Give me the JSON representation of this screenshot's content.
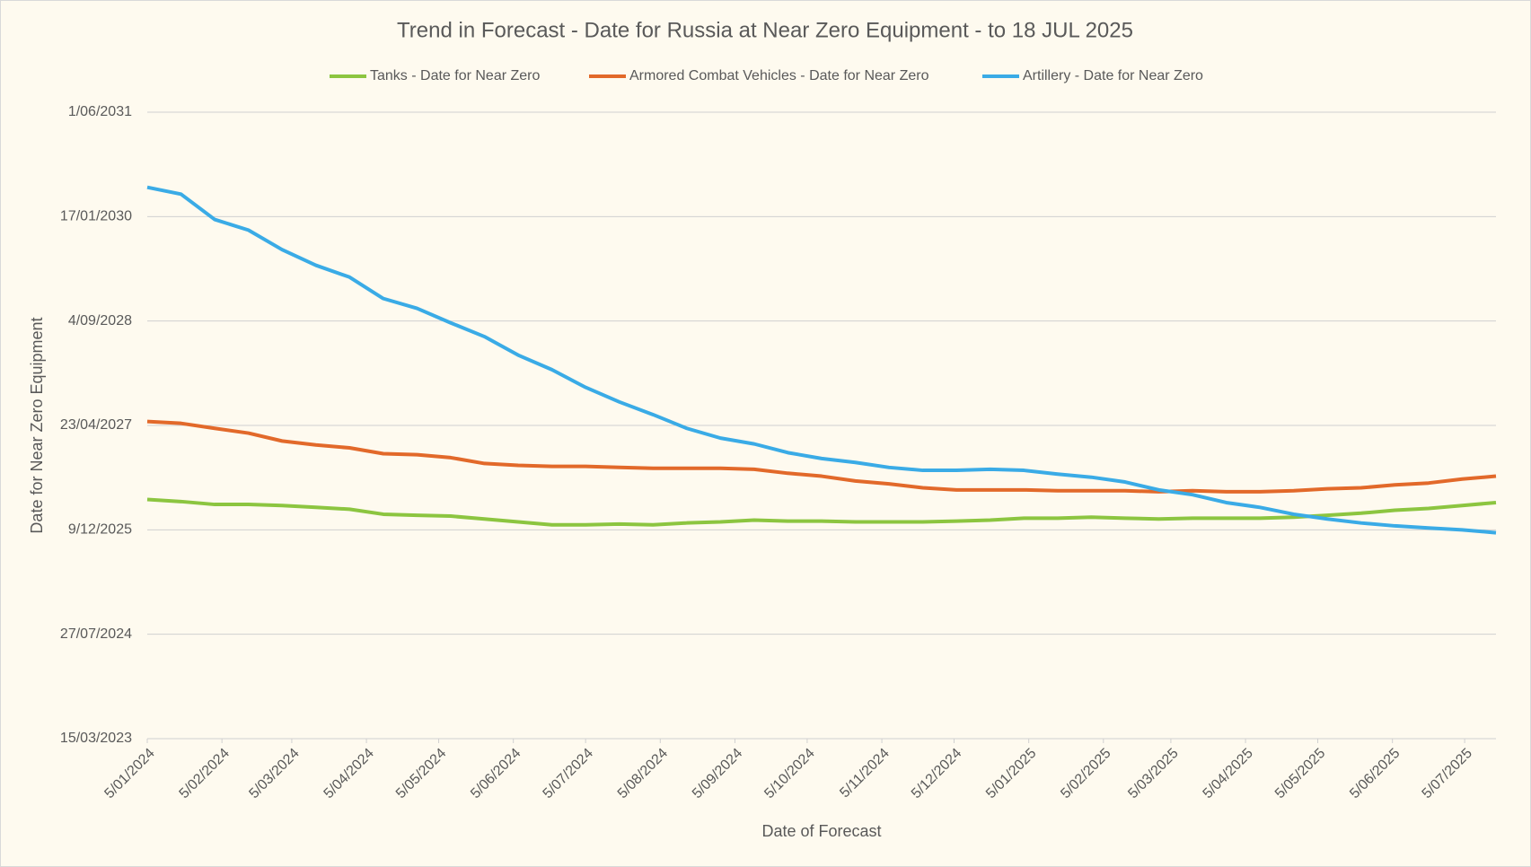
{
  "chart_data": {
    "type": "line",
    "title": "Trend in Forecast - Date for Russia at Near Zero Equipment - to 18 JUL 2025",
    "x_label": "Date of Forecast",
    "y_label": "Date for Near Zero Equipment",
    "grid": true,
    "legend": "top",
    "x": [
      45296,
      45310,
      45324,
      45338,
      45352,
      45366,
      45380,
      45394,
      45408,
      45422,
      45436,
      45450,
      45464,
      45478,
      45492,
      45506,
      45520,
      45534,
      45548,
      45562,
      45576,
      45590,
      45604,
      45618,
      45632,
      45646,
      45660,
      45674,
      45688,
      45702,
      45716,
      45730,
      45744,
      45758,
      45772,
      45786,
      45800,
      45814,
      45828,
      45842,
      45856
    ],
    "xlim": [
      45296,
      45856
    ],
    "xticks": [
      {
        "value": 45296,
        "label": "5/01/2024"
      },
      {
        "value": 45327,
        "label": "5/02/2024"
      },
      {
        "value": 45356,
        "label": "5/03/2024"
      },
      {
        "value": 45387,
        "label": "5/04/2024"
      },
      {
        "value": 45417,
        "label": "5/05/2024"
      },
      {
        "value": 45448,
        "label": "5/06/2024"
      },
      {
        "value": 45478,
        "label": "5/07/2024"
      },
      {
        "value": 45509,
        "label": "5/08/2024"
      },
      {
        "value": 45540,
        "label": "5/09/2024"
      },
      {
        "value": 45570,
        "label": "5/10/2024"
      },
      {
        "value": 45601,
        "label": "5/11/2024"
      },
      {
        "value": 45631,
        "label": "5/12/2024"
      },
      {
        "value": 45662,
        "label": "5/01/2025"
      },
      {
        "value": 45693,
        "label": "5/02/2025"
      },
      {
        "value": 45721,
        "label": "5/03/2025"
      },
      {
        "value": 45752,
        "label": "5/04/2025"
      },
      {
        "value": 45782,
        "label": "5/05/2025"
      },
      {
        "value": 45813,
        "label": "5/06/2025"
      },
      {
        "value": 45843,
        "label": "5/07/2025"
      }
    ],
    "ylim": [
      45000,
      48012
    ],
    "yticks": [
      {
        "value": 45000,
        "label": "15/03/2023"
      },
      {
        "value": 45502,
        "label": "27/07/2024"
      },
      {
        "value": 46004,
        "label": "9/12/2025"
      },
      {
        "value": 46506,
        "label": "23/04/2027"
      },
      {
        "value": 47008,
        "label": "4/09/2028"
      },
      {
        "value": 47510,
        "label": "17/01/2030"
      },
      {
        "value": 48012,
        "label": "1/06/2031"
      }
    ],
    "series": [
      {
        "name": "Tanks - Date for Near Zero",
        "color": "#8cc540",
        "values": [
          46150,
          46140,
          46126,
          46126,
          46121,
          46112,
          46103,
          46079,
          46074,
          46070,
          46056,
          46042,
          46028,
          46028,
          46032,
          46028,
          46037,
          46042,
          46051,
          46046,
          46046,
          46042,
          46042,
          46042,
          46046,
          46051,
          46060,
          46060,
          46065,
          46060,
          46056,
          46060,
          46060,
          46060,
          46065,
          46074,
          46084,
          46098,
          46107,
          46121,
          46135
        ]
      },
      {
        "name": "Armored Combat Vehicles - Date for Near Zero",
        "color": "#e2692a",
        "values": [
          46525,
          46516,
          46492,
          46469,
          46431,
          46412,
          46398,
          46370,
          46365,
          46351,
          46323,
          46314,
          46309,
          46309,
          46304,
          46300,
          46300,
          46300,
          46295,
          46276,
          46262,
          46239,
          46225,
          46206,
          46196,
          46196,
          46196,
          46192,
          46192,
          46192,
          46187,
          46192,
          46187,
          46187,
          46192,
          46201,
          46206,
          46220,
          46229,
          46248,
          46262
        ]
      },
      {
        "name": "Artillery - Date for Near Zero",
        "color": "#3aabe6",
        "values": [
          47651,
          47618,
          47496,
          47445,
          47351,
          47276,
          47219,
          47116,
          47069,
          46999,
          46933,
          46844,
          46774,
          46689,
          46619,
          46558,
          46492,
          46445,
          46417,
          46375,
          46347,
          46328,
          46304,
          46290,
          46290,
          46295,
          46290,
          46272,
          46257,
          46234,
          46196,
          46173,
          46135,
          46112,
          46079,
          46056,
          46037,
          46023,
          46013,
          46004,
          45990
        ]
      }
    ]
  }
}
